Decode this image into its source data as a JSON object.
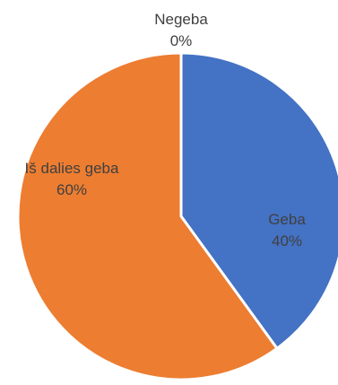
{
  "chart_data": {
    "type": "pie",
    "title": "",
    "slices": [
      {
        "label": "Geba",
        "value": 40,
        "value_label": "40%",
        "color": "#4472C4"
      },
      {
        "label": "Iš dalies geba",
        "value": 60,
        "value_label": "60%",
        "color": "#ED7D31"
      },
      {
        "label": "Negeba",
        "value": 0,
        "value_label": "0%",
        "color": "#A5A5A5"
      }
    ],
    "start_angle_deg": 0,
    "direction": "clockwise",
    "slice_border_color": "#ffffff",
    "legend": "none"
  }
}
